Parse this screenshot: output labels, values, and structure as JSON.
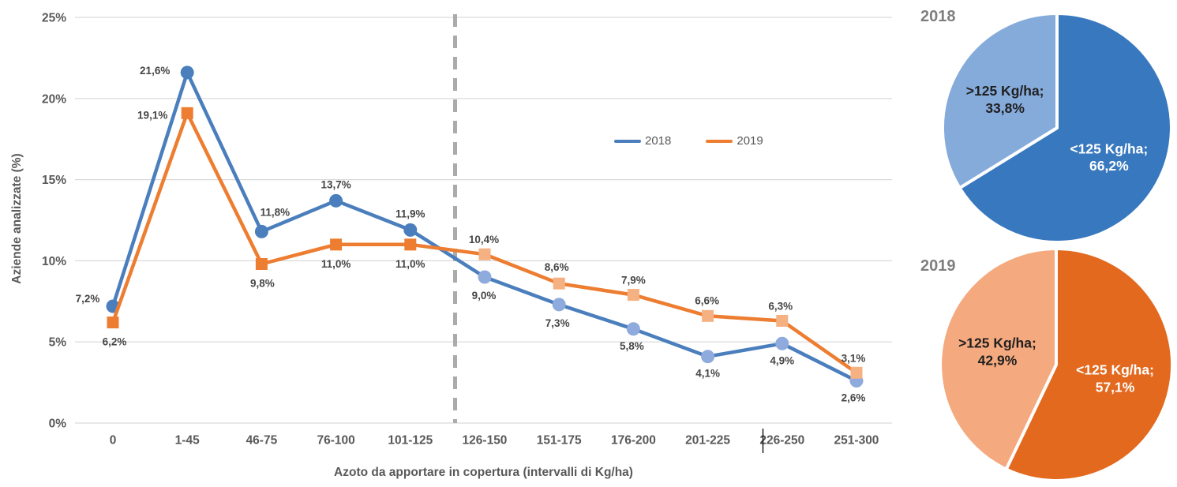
{
  "chart_data": [
    {
      "type": "line",
      "title": "",
      "xlabel": "Azoto da apportare in copertura (intervalli di Kg/ha)",
      "ylabel": "Aziende analizzate (%)",
      "categories": [
        "0",
        "1-45",
        "46-75",
        "76-100",
        "101-125",
        "126-150",
        "151-175",
        "176-200",
        "201-225",
        "226-250",
        "251-300"
      ],
      "series": [
        {
          "name": "2018",
          "marker": "circle",
          "color": "#4A7EBD",
          "light_color": "#8FAADC",
          "values": [
            7.2,
            21.6,
            11.8,
            13.7,
            11.9,
            9.0,
            7.3,
            5.8,
            4.1,
            4.9,
            2.6
          ],
          "labels": [
            "7,2%",
            "21,6%",
            "11,8%",
            "13,7%",
            "11,9%",
            "9,0%",
            "7,3%",
            "5,8%",
            "4,1%",
            "4,9%",
            "2,6%"
          ]
        },
        {
          "name": "2019",
          "marker": "square",
          "color": "#ED7D31",
          "light_color": "#F6B183",
          "values": [
            6.2,
            19.1,
            9.8,
            11.0,
            11.0,
            10.4,
            8.6,
            7.9,
            6.6,
            6.3,
            3.1
          ],
          "labels": [
            "6,2%",
            "19,1%",
            "9,8%",
            "11,0%",
            "11,0%",
            "10,4%",
            "8,6%",
            "7,9%",
            "6,6%",
            "6,3%",
            "3,1%"
          ]
        }
      ],
      "ylim": [
        0,
        25
      ],
      "yticks": [
        "0%",
        "5%",
        "10%",
        "15%",
        "20%",
        "25%"
      ],
      "grid": true,
      "gridline_color": "#D9D9D9",
      "legend_position": "inside-top-right",
      "divider_after_category": "101-125",
      "divider_color": "#ABABAB",
      "light_markers_from_index": 5,
      "label_offsets": {
        "2018": [
          [
            -32,
            -10
          ],
          [
            -41,
            -3
          ],
          [
            17,
            -25
          ],
          [
            0,
            -21
          ],
          [
            0,
            -21
          ],
          [
            -1,
            23
          ],
          [
            -2,
            23
          ],
          [
            -2,
            21
          ],
          [
            0,
            21
          ],
          [
            0,
            21
          ],
          [
            -4,
            21
          ]
        ],
        "2019": [
          [
            2,
            24
          ],
          [
            -44,
            2
          ],
          [
            1,
            24
          ],
          [
            0,
            24
          ],
          [
            0,
            24
          ],
          [
            -1,
            -19
          ],
          [
            -3,
            -21
          ],
          [
            0,
            -19
          ],
          [
            -1,
            -20
          ],
          [
            -2,
            -19
          ],
          [
            -4,
            -19
          ]
        ]
      }
    },
    {
      "type": "pie",
      "title": "2018",
      "slices": [
        {
          "label": "<125 Kg/ha;",
          "value_label": "66,2%",
          "value": 66.2,
          "color": "#3878BE",
          "text_color": "#FFFFFF"
        },
        {
          "label": ">125 Kg/ha;",
          "value_label": "33,8%",
          "value": 33.8,
          "color": "#85ABDB",
          "text_color": "#1F1F1F"
        }
      ]
    },
    {
      "type": "pie",
      "title": "2019",
      "slices": [
        {
          "label": "<125 Kg/ha;",
          "value_label": "57,1%",
          "value": 57.1,
          "color": "#E2691E",
          "text_color": "#FFFFFF"
        },
        {
          "label": ">125 Kg/ha;",
          "value_label": "42,9%",
          "value": 42.9,
          "color": "#F5A97E",
          "text_color": "#1F1F1F"
        }
      ]
    }
  ]
}
